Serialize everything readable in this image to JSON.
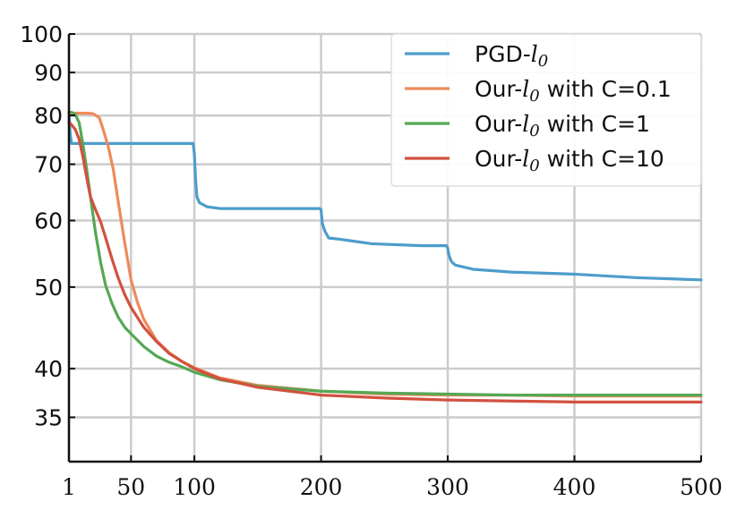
{
  "chart_data": {
    "type": "line",
    "title": "",
    "xlabel": "",
    "ylabel": "",
    "xlim": [
      1,
      500
    ],
    "ylim": [
      31,
      100
    ],
    "yscale": "log",
    "grid": true,
    "legend_position": "top-right",
    "x_ticks": [
      {
        "value": 1,
        "label": "1"
      },
      {
        "value": 50,
        "label": "50"
      },
      {
        "value": 100,
        "label": "100"
      },
      {
        "value": 200,
        "label": "200"
      },
      {
        "value": 300,
        "label": "300"
      },
      {
        "value": 400,
        "label": "400"
      },
      {
        "value": 500,
        "label": "500"
      }
    ],
    "y_ticks": [
      {
        "value": 35,
        "label": "35"
      },
      {
        "value": 40,
        "label": "40"
      },
      {
        "value": 50,
        "label": "50"
      },
      {
        "value": 60,
        "label": "60"
      },
      {
        "value": 70,
        "label": "70"
      },
      {
        "value": 80,
        "label": "80"
      },
      {
        "value": 90,
        "label": "90"
      },
      {
        "value": 100,
        "label": "100"
      }
    ],
    "series": [
      {
        "name": "PGD-l0",
        "legend_base": "PGD-",
        "legend_sub": "l",
        "legend_subscript": "0",
        "legend_tail": "",
        "color": "#4c9dcb",
        "x": [
          1,
          2,
          3,
          5,
          10,
          50,
          99,
          100,
          101,
          102,
          104,
          110,
          120,
          150,
          199,
          200,
          201,
          203,
          206,
          215,
          240,
          280,
          299,
          300,
          301,
          303,
          306,
          320,
          350,
          400,
          420,
          450,
          500
        ],
        "y": [
          80.3,
          76,
          74.1,
          74.1,
          74.1,
          74.1,
          74.1,
          72,
          67,
          64,
          63,
          62.3,
          62,
          62,
          62,
          61.8,
          59.5,
          58.3,
          57.2,
          57,
          56.3,
          56,
          56,
          55.6,
          54.5,
          53.6,
          53.1,
          52.5,
          52.1,
          51.8,
          51.6,
          51.3,
          51
        ]
      },
      {
        "name": "Our-l0 with C=0.1",
        "legend_base": "Our-",
        "legend_sub": "l",
        "legend_subscript": "0",
        "legend_tail": " with C=0.1",
        "color": "#ee8a5b",
        "x": [
          1,
          5,
          10,
          15,
          20,
          25,
          28,
          32,
          36,
          40,
          45,
          50,
          55,
          60,
          70,
          80,
          90,
          100,
          120,
          150,
          200,
          250,
          300,
          350,
          400,
          450,
          500
        ],
        "y": [
          80.5,
          80.5,
          80.5,
          80.5,
          80.4,
          79.5,
          77,
          73.5,
          69,
          63,
          56.5,
          51,
          48,
          45.8,
          43.2,
          41.8,
          40.8,
          40.1,
          39,
          38.2,
          37.6,
          37.3,
          37.2,
          37.2,
          37.1,
          37.1,
          37.1
        ]
      },
      {
        "name": "Our-l0 with C=1",
        "legend_base": "Our-",
        "legend_sub": "l",
        "legend_subscript": "0",
        "legend_tail": " with C=1",
        "color": "#55a854",
        "x": [
          1,
          3,
          6,
          9,
          12,
          15,
          18,
          22,
          26,
          30,
          35,
          40,
          45,
          50,
          60,
          70,
          80,
          90,
          100,
          120,
          150,
          200,
          250,
          300,
          350,
          400,
          450,
          500
        ],
        "y": [
          80.7,
          80.7,
          80.2,
          78.5,
          74,
          69,
          64,
          58,
          53.5,
          50.2,
          47.8,
          46,
          44.8,
          44,
          42.5,
          41.4,
          40.7,
          40.2,
          39.6,
          38.8,
          38.1,
          37.6,
          37.4,
          37.3,
          37.2,
          37.2,
          37.2,
          37.2
        ]
      },
      {
        "name": "Our-l0 with C=10",
        "legend_base": "Our-",
        "legend_sub": "l",
        "legend_subscript": "0",
        "legend_tail": " with C=10",
        "color": "#d2513f",
        "x": [
          1,
          3,
          6,
          9,
          12,
          15,
          18,
          22,
          26,
          30,
          35,
          40,
          45,
          50,
          60,
          70,
          80,
          90,
          100,
          120,
          150,
          200,
          250,
          300,
          350,
          400,
          450,
          500
        ],
        "y": [
          78.6,
          78,
          77,
          75,
          71.5,
          67.5,
          64,
          61.8,
          59.8,
          57.2,
          54,
          51.2,
          49,
          47.3,
          44.8,
          43.1,
          41.7,
          40.8,
          40,
          38.9,
          38,
          37.2,
          36.9,
          36.7,
          36.6,
          36.5,
          36.5,
          36.5
        ]
      }
    ]
  }
}
